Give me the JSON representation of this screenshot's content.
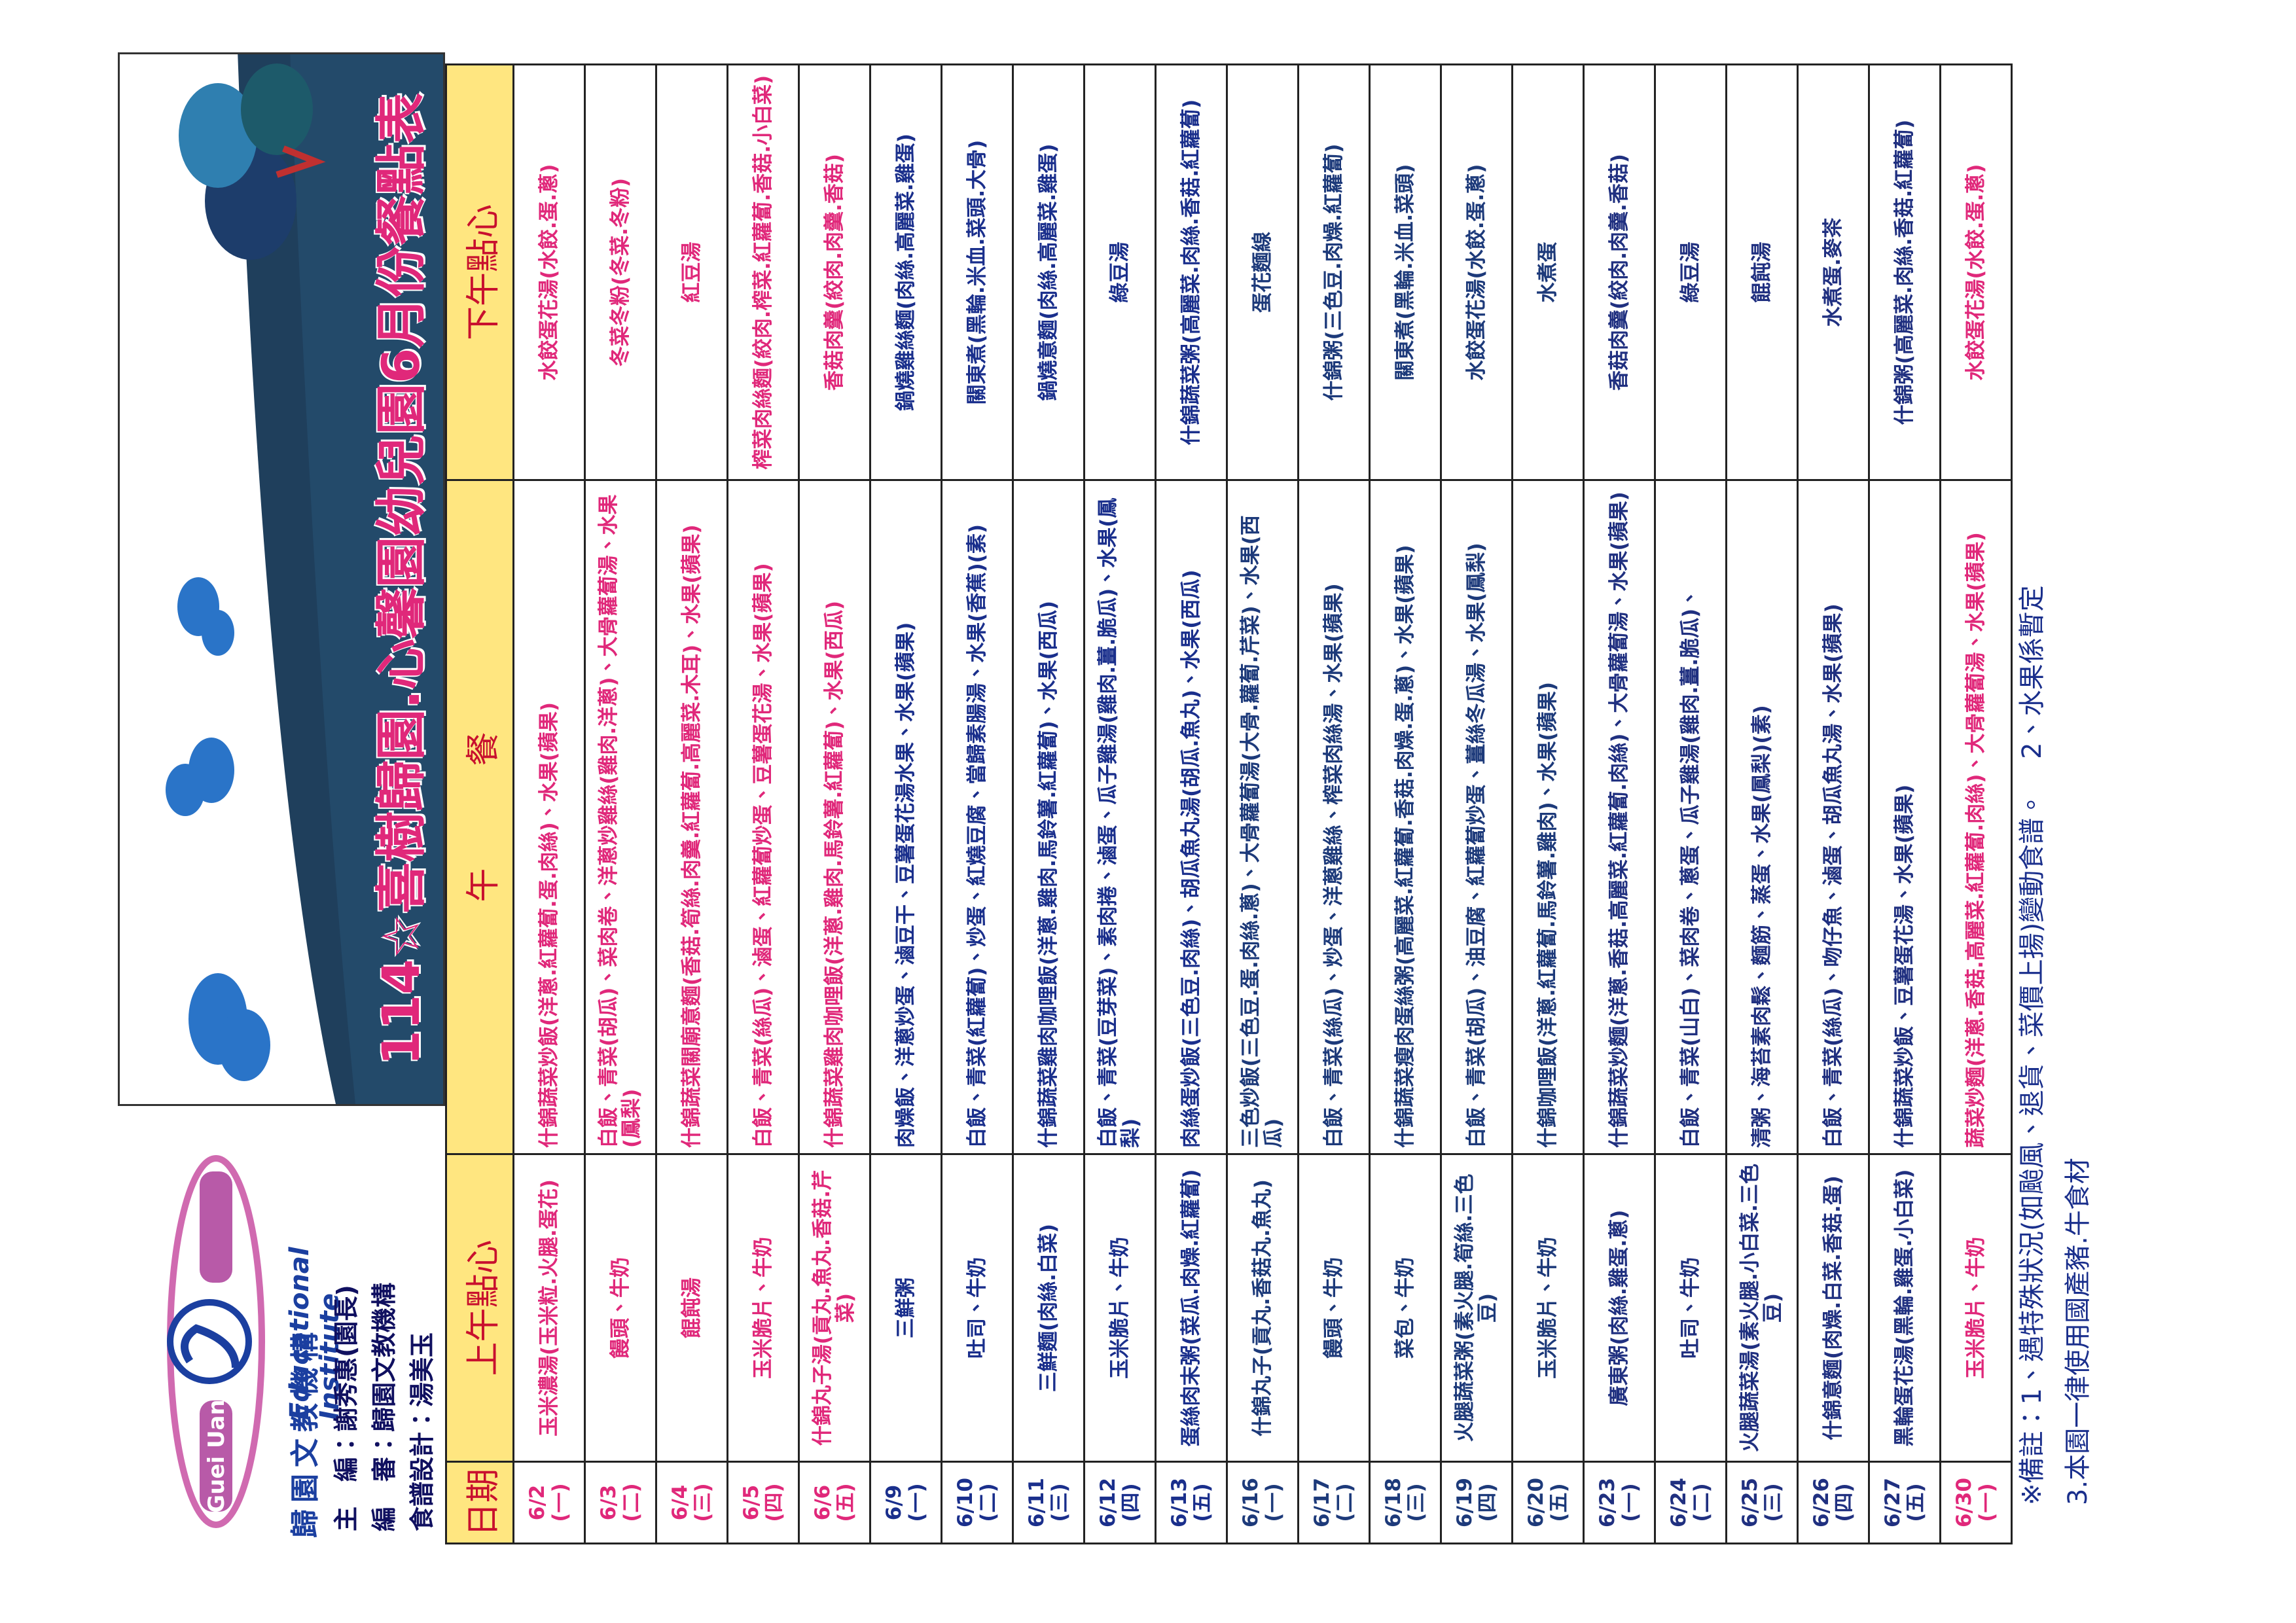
{
  "header": {
    "title": "114☆喜樹歸園.心馨園幼兒園6月份餐點表",
    "logo_latin": "Guei Uan",
    "logo_name": "歸園文教機構",
    "logo_english": "Educational Institute",
    "editor": "主　編：謝秀惠(園長)",
    "reviewer": "編　審：歸園文教機構",
    "designer": "食譜設計：湯美玉"
  },
  "table": {
    "columns": [
      "日期",
      "上午點心",
      "午　　　餐",
      "下午點心"
    ],
    "rows": [
      [
        "6/2",
        "(一)",
        "玉米濃湯(玉米粒.火腿.蛋花)",
        "什錦蔬菜炒飯(洋蔥.紅蘿蔔.蛋.肉絲)、水果(蘋果)",
        "水餃蛋花湯(水餃.蛋.蔥)"
      ],
      [
        "6/3",
        "(二)",
        "饅頭、牛奶",
        "白飯、青菜(胡瓜)、菜肉卷、洋蔥炒雞絲(雞肉.洋蔥)、大骨蘿蔔湯、水果(鳳梨)",
        "冬菜冬粉(冬菜.冬粉)"
      ],
      [
        "6/4",
        "(三)",
        "餛飩湯",
        "什錦蔬菜關廟意麵(香菇.筍絲.肉羹.紅蘿蔔.高麗菜.木耳)、水果(蘋果)",
        "紅豆湯"
      ],
      [
        "6/5",
        "(四)",
        "玉米脆片、牛奶",
        "白飯、青菜(絲瓜)、滷蛋、紅蘿蔔炒蛋、豆薯蛋花湯、水果(蘋果)",
        "榨菜肉絲麵(絞肉.榨菜.紅蘿蔔.香菇.小白菜)"
      ],
      [
        "6/6",
        "(五)",
        "什錦丸子湯(貢丸.魚丸.香菇.芹菜)",
        "什錦蔬菜雞肉咖哩飯(洋蔥.雞肉.馬鈴薯.紅蘿蔔)、水果(西瓜)",
        "香菇肉羹(絞肉.肉羹.香菇)"
      ],
      [
        "6/9",
        "(一)",
        "三鮮粥",
        "肉燥飯、洋蔥炒蛋、滷豆干、豆薯蛋花湯水果、水果(蘋果)",
        "鍋燒雞絲麵(肉絲.高麗菜.雞蛋)"
      ],
      [
        "6/10",
        "(二)",
        "吐司、牛奶",
        "白飯、青菜(紅蘿蔔)、炒蛋、紅燒豆腐、當歸素腸湯、水果(香蕉)(素)",
        "關東煮(黑輪.米血.菜頭.大骨)"
      ],
      [
        "6/11",
        "(三)",
        "三鮮麵(肉絲.白菜)",
        "什錦蔬菜雞肉咖哩飯(洋蔥.雞肉.馬鈴薯.紅蘿蔔)、水果(西瓜)",
        "鍋燒意麵(肉絲.高麗菜.雞蛋)"
      ],
      [
        "6/12",
        "(四)",
        "玉米脆片、牛奶",
        "白飯、青菜(豆芽菜)、素肉捲、滷蛋、瓜子雞湯(雞肉.薑.脆瓜)、水果(鳳梨)",
        "綠豆湯"
      ],
      [
        "6/13",
        "(五)",
        "蛋絲肉末粥(菜瓜.肉燥.紅蘿蔔)",
        "肉絲蛋炒飯(三色豆.肉絲)、胡瓜魚丸湯(胡瓜.魚丸)、水果(西瓜)",
        "什錦蔬菜粥(高麗菜.肉絲.香菇.紅蘿蔔)"
      ],
      [
        "6/16",
        "(一)",
        "什錦丸子(貢丸.香菇丸.魚丸)",
        "三色炒飯(三色豆.蛋.肉絲.蔥)、大骨蘿蔔湯(大骨.蘿蔔.芹菜)、水果(西瓜)",
        "蛋花麵線"
      ],
      [
        "6/17",
        "(二)",
        "饅頭、牛奶",
        "白飯、青菜(絲瓜)、炒蛋、洋蔥雞絲、榨菜肉絲湯、水果(蘋果)",
        "什錦粥(三色豆.肉燥.紅蘿蔔)"
      ],
      [
        "6/18",
        "(三)",
        "菜包、牛奶",
        "什錦蔬菜瘦肉蛋絲粥(高麗菜.紅蘿蔔.香菇.肉燥.蛋.蔥)、水果(蘋果)",
        "關東煮(黑輪.米血.菜頭)"
      ],
      [
        "6/19",
        "(四)",
        "火腿蔬菜粥(素火腿.筍絲.三色豆)",
        "白飯、青菜(胡瓜)、油豆腐、紅蘿蔔炒蛋、薑絲冬瓜湯、水果(鳳梨)",
        "水餃蛋花湯(水餃.蛋.蔥)"
      ],
      [
        "6/20",
        "(五)",
        "玉米脆片、牛奶",
        "什錦咖哩飯(洋蔥.紅蘿蔔.馬鈴薯.雞肉)、水果(蘋果)",
        "水煮蛋"
      ],
      [
        "6/23",
        "(一)",
        "廣東粥(肉絲.雞蛋.蔥)",
        "什錦蔬菜炒麵(洋蔥.香菇.高麗菜.紅蘿蔔.肉絲)、大骨蘿蔔湯、水果(蘋果)",
        "香菇肉羹(絞肉.肉羹.香菇)"
      ],
      [
        "6/24",
        "(二)",
        "吐司、牛奶",
        "白飯、青菜(山白)、菜肉卷、蔥蛋、瓜子雞湯(雞肉.薑.脆瓜)、",
        "綠豆湯"
      ],
      [
        "6/25",
        "(三)",
        "火腿蔬菜湯(素火腿.小白菜.三色豆)",
        "清粥、海苔素肉鬆、麵筋、蒸蛋、水果(鳳梨)(素)",
        "餛飩湯"
      ],
      [
        "6/26",
        "(四)",
        "什錦意麵(肉燥.白菜.香菇.蛋)",
        "白飯、青菜(絲瓜)、吻仔魚、滷蛋、胡瓜魚丸湯、水果(蘋果)",
        "水煮蛋.麥茶"
      ],
      [
        "6/27",
        "(五)",
        "黑輪蛋花湯(黑輪.雞蛋.小白菜)",
        "什錦蔬菜炒飯、豆薯蛋花湯、水果(蘋果)",
        "什錦粥(高麗菜.肉絲.香菇.紅蘿蔔)"
      ],
      [
        "6/30",
        "(一)",
        "玉米脆片、牛奶",
        "蔬菜炒麵(洋蔥.香菇.高麗菜.紅蘿蔔.肉絲)、大骨蘿蔔湯、水果(蘋果)",
        "水餃蛋花湯(水餃.蛋.蔥)"
      ]
    ]
  },
  "notes": [
    "※備註：1、遇特殊狀況(如颱風、退貨、菜價上揚)變動食譜。",
    "2、水果係暫定",
    "3.本園一律使用國產豬.牛食材"
  ]
}
